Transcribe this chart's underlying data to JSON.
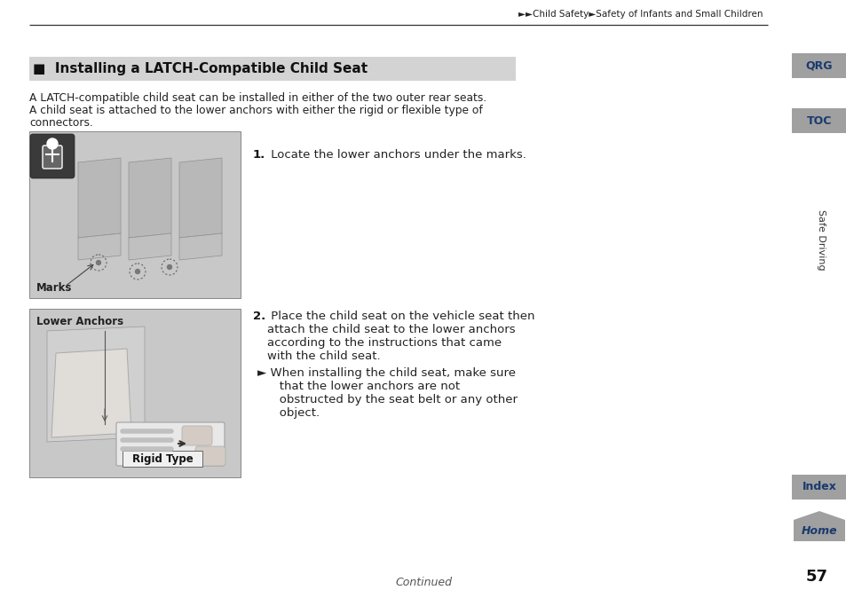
{
  "bg_color": "#ffffff",
  "top_breadcrumb": "►►Child Safety►Safety of Infants and Small Children",
  "section_title": "■  Installing a LATCH-Compatible Child Seat",
  "section_title_bg": "#d3d3d3",
  "body_text_line1": "A LATCH-compatible child seat can be installed in either of the two outer rear seats.",
  "body_text_line2": "A child seat is attached to the lower anchors with either the rigid or flexible type of",
  "body_text_line3": "connectors.",
  "step1_bold": "1.",
  "step1_text": " Locate the lower anchors under the marks.",
  "step2_bold": "2.",
  "step2_text_line1": " Place the child seat on the vehicle seat then",
  "step2_text_line2": "attach the child seat to the lower anchors",
  "step2_text_line3": "according to the instructions that came",
  "step2_text_line4": "with the child seat.",
  "step2_bullet": "► When installing the child seat, make sure",
  "step2_bullet2": "   that the lower anchors are not",
  "step2_bullet3": "   obstructed by the seat belt or any other",
  "step2_bullet4": "   object.",
  "img1_label": "Marks",
  "img2_label1": "Lower Anchors",
  "img2_label2": "Rigid Type",
  "tab_qrg": "QRG",
  "tab_toc": "TOC",
  "tab_safe": "Safe Driving",
  "tab_index": "Index",
  "tab_home": "Home",
  "tab_bg": "#a0a0a0",
  "tab_text": "#1a3a6e",
  "page_num": "57",
  "continued": "Continued",
  "img1_bg": "#c8c8c8",
  "img2_bg": "#c8c8c8",
  "line_color": "#555555"
}
